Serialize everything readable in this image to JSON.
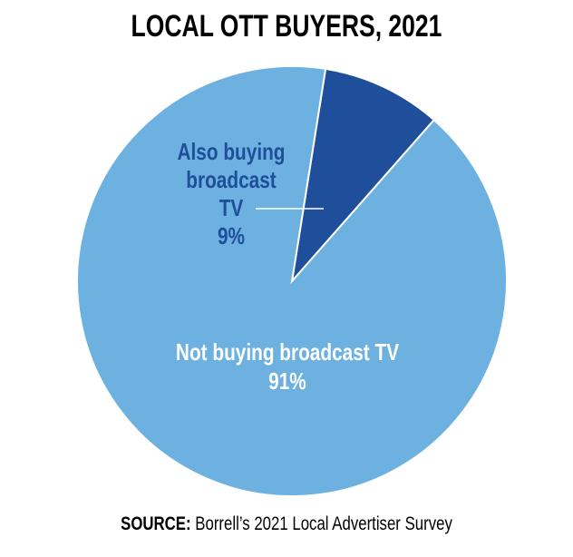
{
  "chart_data": {
    "type": "pie",
    "title": "LOCAL OTT BUYERS, 2021",
    "categories": [
      "Also buying broadcast TV",
      "Not buying broadcast TV"
    ],
    "values": [
      9,
      91
    ],
    "value_labels": [
      "9%",
      "91%"
    ],
    "colors": [
      "#1f4e9a",
      "#6cb1e0"
    ],
    "source": {
      "label": "SOURCE:",
      "text": "Borrell’s 2021 Local Advertiser Survey"
    }
  }
}
